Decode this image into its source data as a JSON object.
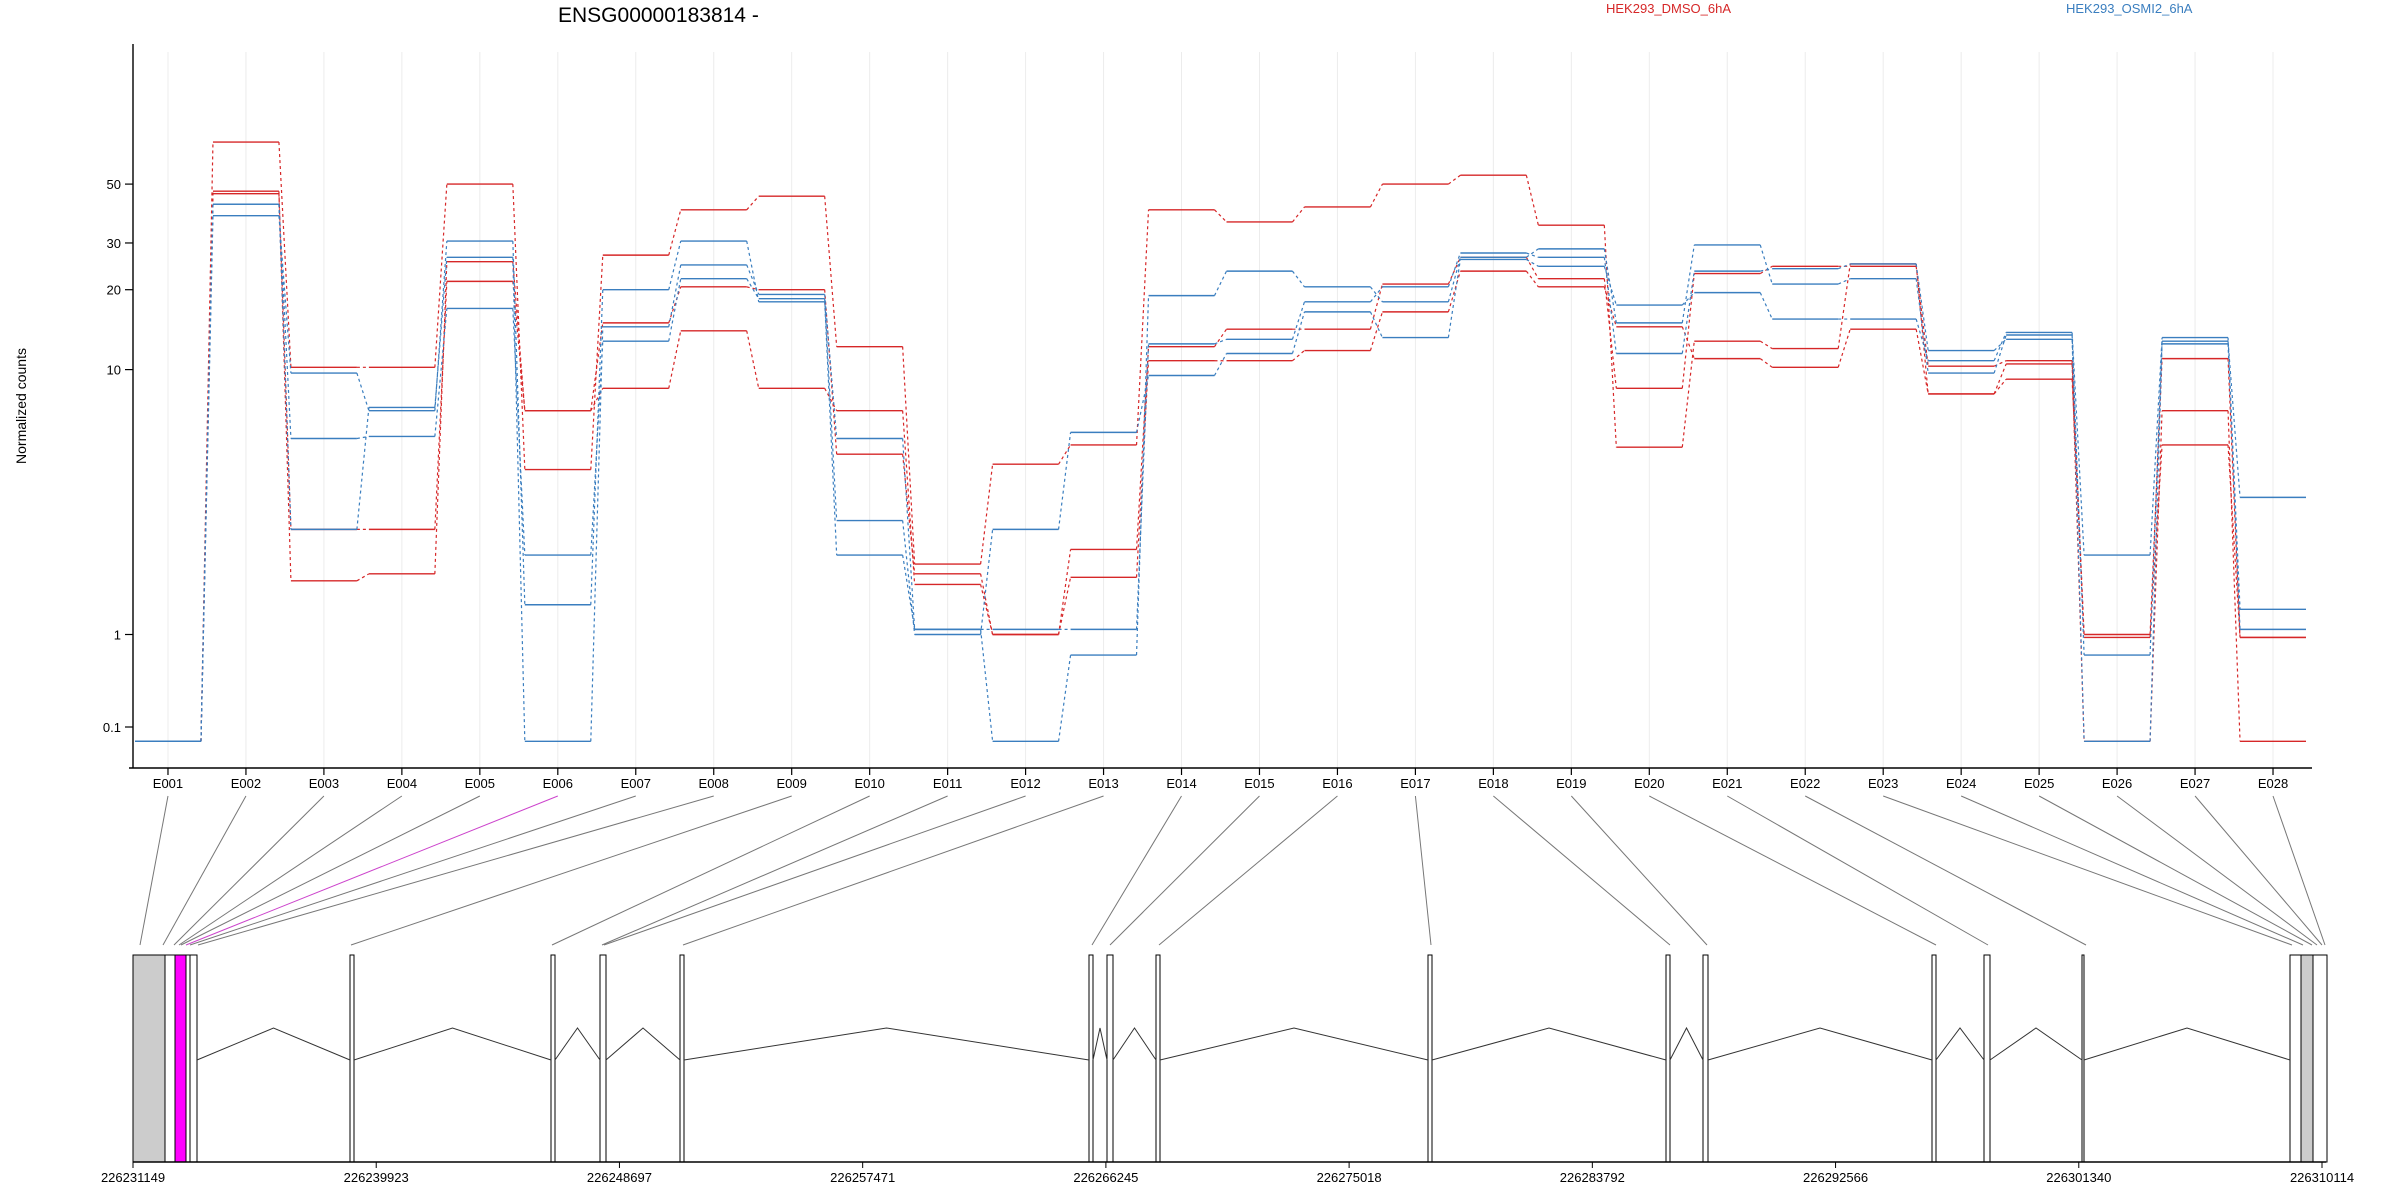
{
  "chart_data": {
    "type": "line",
    "title": "ENSG00000183814 -",
    "ylabel": "Normalized counts",
    "y_scale": "log",
    "y_ticks": [
      "0.1",
      "1",
      "10",
      "20",
      "30",
      "50"
    ],
    "categories": [
      "E001",
      "E002",
      "E003",
      "E004",
      "E005",
      "E006",
      "E007",
      "E008",
      "E009",
      "E010",
      "E011",
      "E012",
      "E013",
      "E014",
      "E015",
      "E016",
      "E017",
      "E018",
      "E019",
      "E020",
      "E021",
      "E022",
      "E023",
      "E024",
      "E025",
      "E026",
      "E027",
      "E028"
    ],
    "legend": [
      {
        "name": "HEK293_DMSO_6hA",
        "color": "#d62728"
      },
      {
        "name": "HEK293_OSMI2_6hA",
        "color": "#3a7ebf"
      }
    ],
    "series": [
      {
        "group": "HEK293_DMSO_6hA",
        "values": [
          0.07,
          72,
          10.2,
          10.2,
          50,
          4.2,
          27,
          40,
          45,
          12.2,
          1.85,
          4.4,
          5.2,
          40,
          36,
          41,
          50,
          54,
          35,
          5.1,
          12.8,
          12,
          25,
          8.1,
          10.5,
          0.07,
          7,
          0.07
        ]
      },
      {
        "group": "HEK293_DMSO_6hA",
        "values": [
          0.07,
          46,
          2.5,
          2.5,
          21.5,
          7,
          15,
          20.5,
          20,
          4.8,
          1.7,
          1.0,
          2.1,
          12.2,
          14.2,
          14.2,
          21,
          26.5,
          22,
          8.5,
          23,
          24.5,
          24.5,
          10.3,
          10.8,
          1.0,
          11,
          0.93
        ]
      },
      {
        "group": "HEK293_DMSO_6hA",
        "values": [
          0.07,
          47,
          1.6,
          1.7,
          25.5,
          7,
          8.5,
          14,
          8.5,
          7,
          1.55,
          1.0,
          1.65,
          10.8,
          10.8,
          11.8,
          16.5,
          23.5,
          20.5,
          14.5,
          11,
          10.2,
          14.2,
          8.1,
          9.2,
          0.93,
          5.2,
          0.93
        ]
      },
      {
        "group": "HEK293_OSMI2_6hA",
        "values": [
          0.07,
          38,
          9.7,
          7,
          30.5,
          1.3,
          20,
          30.5,
          18,
          2.0,
          1.05,
          0.07,
          0.6,
          19,
          23.5,
          20.5,
          18,
          26.5,
          28.5,
          15,
          29.5,
          21,
          22,
          9.7,
          13.5,
          0.6,
          12.8,
          3.3
        ]
      },
      {
        "group": "HEK293_OSMI2_6hA",
        "values": [
          0.07,
          42,
          5.5,
          5.6,
          17,
          2.0,
          12.8,
          22,
          18.5,
          2.7,
          1.0,
          2.5,
          5.8,
          9.5,
          11.5,
          16.5,
          13.2,
          26,
          24.5,
          17.5,
          19.5,
          15.5,
          15.5,
          10.8,
          13.8,
          2.0,
          13.2,
          1.25
        ]
      },
      {
        "group": "HEK293_OSMI2_6hA",
        "values": [
          0.07,
          42,
          2.5,
          7.2,
          26.5,
          0.07,
          14.5,
          24.8,
          19.2,
          5.5,
          1.05,
          1.05,
          1.05,
          12.5,
          13,
          18,
          20.5,
          27.5,
          26.5,
          11.5,
          23.5,
          24,
          25,
          11.8,
          13,
          0.07,
          12.5,
          1.05
        ]
      }
    ],
    "gene_coords": [
      "226231149",
      "226239923",
      "226248697",
      "226257471",
      "226266245",
      "226275018",
      "226283792",
      "226292566",
      "226301340",
      "226310114"
    ]
  }
}
